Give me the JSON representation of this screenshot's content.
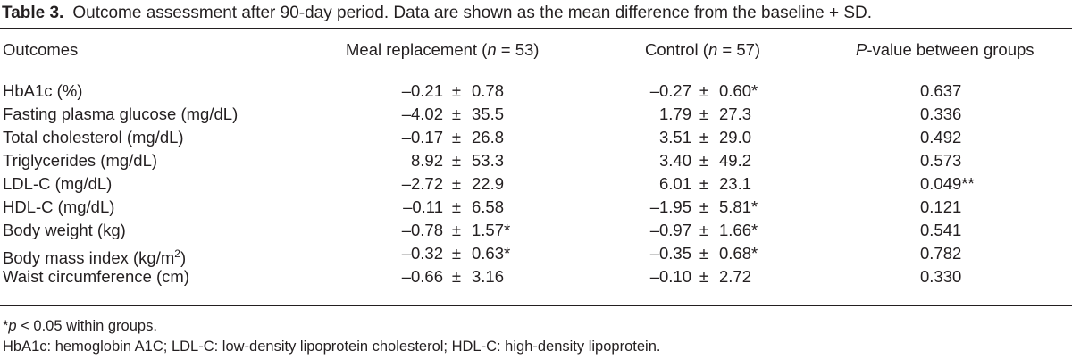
{
  "caption": {
    "label": "Table 3.",
    "text": "Outcome assessment after 90-day period. Data are shown as the mean difference from the baseline + SD."
  },
  "header": {
    "outcomes": "Outcomes",
    "meal_prefix": "Meal replacement (",
    "meal_n": "n",
    "meal_suffix": " = 53)",
    "control_prefix": "Control (",
    "control_n": "n",
    "control_suffix": " = 57)",
    "p_italic": "P",
    "p_rest": "-value between groups"
  },
  "rows": [
    {
      "outcome": "HbA1c (%)",
      "meal_mean": "–0.21",
      "meal_sd": "0.78",
      "ctrl_mean": "–0.27",
      "ctrl_sd": "0.60*",
      "p": "0.637"
    },
    {
      "outcome": "Fasting plasma glucose (mg/dL)",
      "meal_mean": "–4.02",
      "meal_sd": "35.5",
      "ctrl_mean": "1.79",
      "ctrl_sd": "27.3",
      "p": "0.336"
    },
    {
      "outcome": "Total cholesterol (mg/dL)",
      "meal_mean": "–0.17",
      "meal_sd": "26.8",
      "ctrl_mean": "3.51",
      "ctrl_sd": "29.0",
      "p": "0.492"
    },
    {
      "outcome": "Triglycerides (mg/dL)",
      "meal_mean": "8.92",
      "meal_sd": "53.3",
      "ctrl_mean": "3.40",
      "ctrl_sd": "49.2",
      "p": "0.573"
    },
    {
      "outcome": "LDL-C (mg/dL)",
      "meal_mean": "–2.72",
      "meal_sd": "22.9",
      "ctrl_mean": "6.01",
      "ctrl_sd": "23.1",
      "p": "0.049**"
    },
    {
      "outcome": "HDL-C (mg/dL)",
      "meal_mean": "–0.11",
      "meal_sd": "6.58",
      "ctrl_mean": "–1.95",
      "ctrl_sd": "5.81*",
      "p": "0.121"
    },
    {
      "outcome": "Body weight (kg)",
      "meal_mean": "–0.78",
      "meal_sd": "1.57*",
      "ctrl_mean": "–0.97",
      "ctrl_sd": "1.66*",
      "p": "0.541"
    },
    {
      "outcome": "Body mass index (kg/m",
      "outcome_sup": "2",
      "outcome_tail": ")",
      "meal_mean": "–0.32",
      "meal_sd": "0.63*",
      "ctrl_mean": "–0.35",
      "ctrl_sd": "0.68*",
      "p": "0.782"
    },
    {
      "outcome": "Waist circumference (cm)",
      "meal_mean": "–0.66",
      "meal_sd": "3.16",
      "ctrl_mean": "–0.10",
      "ctrl_sd": "2.72",
      "p": "0.330"
    }
  ],
  "pm_symbol": "±",
  "footnotes": {
    "sig_star": "*",
    "sig_p": "p",
    "sig_text": " < 0.05 within groups.",
    "abbrev": "HbA1c: hemoglobin A1C; LDL-C: low-density lipoprotein cholesterol; HDL-C: high-density lipoprotein."
  }
}
